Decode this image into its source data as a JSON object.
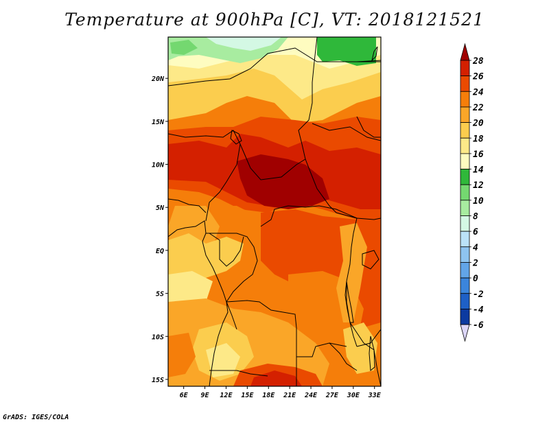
{
  "title": "Temperature at 900hPa [C], VT: 2018121521",
  "credit": "GrADS: IGES/COLA",
  "map": {
    "lat_labels": [
      "20N",
      "15N",
      "10N",
      "5N",
      "EQ",
      "5S",
      "10S",
      "15S"
    ],
    "lat_values": [
      20,
      15,
      10,
      5,
      0,
      -5,
      -10,
      -15
    ],
    "lon_labels": [
      "6E",
      "9E",
      "12E",
      "15E",
      "18E",
      "21E",
      "24E",
      "27E",
      "30E",
      "33E"
    ],
    "lon_values": [
      6,
      9,
      12,
      15,
      18,
      21,
      24,
      27,
      30,
      33
    ],
    "lon_range": [
      3.8,
      33.9
    ],
    "lat_range": [
      -15.8,
      24.8
    ],
    "variable": "Temperature at 900hPa",
    "units": "C",
    "valid_time": "2018121521"
  },
  "colorbar": {
    "levels": [
      "28",
      "26",
      "24",
      "22",
      "20",
      "18",
      "16",
      "14",
      "12",
      "10",
      "8",
      "6",
      "4",
      "2",
      "0",
      "-2",
      "-4",
      "-6"
    ],
    "colors": [
      "#a00000",
      "#d42000",
      "#ea4a00",
      "#f57e0a",
      "#faa628",
      "#fbcd4e",
      "#fde988",
      "#fefcc0",
      "#2fb83a",
      "#74d870",
      "#a8eca0",
      "#d4f8e4",
      "#bbe2f8",
      "#8ec4f0",
      "#62a5e8",
      "#3b85dc",
      "#1e60c6",
      "#0c3aa0",
      "#05166c",
      "#dcd6f8"
    ]
  }
}
